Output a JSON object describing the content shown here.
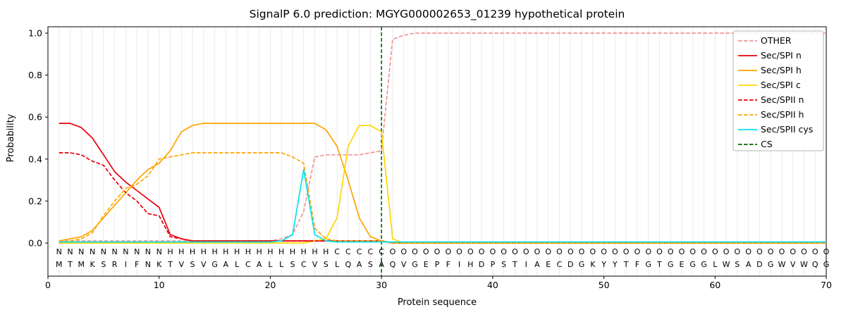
{
  "chart_data": {
    "type": "line",
    "title": "SignalP 6.0 prediction: MGYG000002653_01239 hypothetical protein",
    "xlabel": "Protein sequence",
    "ylabel": "Probability",
    "xlim": [
      0,
      70
    ],
    "ylim": [
      0.0,
      1.05
    ],
    "x_ticks": [
      0,
      10,
      20,
      30,
      40,
      50,
      60,
      70
    ],
    "y_ticks": [
      "0.0",
      "0.2",
      "0.4",
      "0.6",
      "0.8",
      "1.0"
    ],
    "x_start": 1,
    "grid": "vertical-per-residue",
    "legend_position": "upper right",
    "series": [
      {
        "name": "OTHER",
        "color": "#f09494",
        "dash": true,
        "values": [
          0.01,
          0.01,
          0.01,
          0.01,
          0.01,
          0.01,
          0.01,
          0.01,
          0.01,
          0.01,
          0.01,
          0.01,
          0.01,
          0.01,
          0.01,
          0.01,
          0.01,
          0.01,
          0.01,
          0.01,
          0.02,
          0.04,
          0.15,
          0.41,
          0.42,
          0.42,
          0.42,
          0.42,
          0.43,
          0.44,
          0.97,
          0.99,
          1.0,
          1.0,
          1.0,
          1.0,
          1.0,
          1.0,
          1.0,
          1.0,
          1.0,
          1.0,
          1.0,
          1.0,
          1.0,
          1.0,
          1.0,
          1.0,
          1.0,
          1.0,
          1.0,
          1.0,
          1.0,
          1.0,
          1.0,
          1.0,
          1.0,
          1.0,
          1.0,
          1.0,
          1.0,
          1.0,
          1.0,
          1.0,
          1.0,
          1.0,
          1.0,
          1.0,
          1.0,
          1.0
        ]
      },
      {
        "name": "Sec/SPI n",
        "color": "#e8000b",
        "dash": false,
        "values": [
          0.57,
          0.57,
          0.55,
          0.5,
          0.42,
          0.34,
          0.29,
          0.25,
          0.21,
          0.17,
          0.04,
          0.02,
          0.01,
          0.01,
          0.01,
          0.01,
          0.01,
          0.01,
          0.01,
          0.01,
          0.01,
          0.01,
          0.01,
          0.01,
          0.01,
          0.01,
          0.01,
          0.01,
          0.01,
          0.01,
          0,
          0,
          0,
          0,
          0,
          0,
          0,
          0,
          0,
          0,
          0,
          0,
          0,
          0,
          0,
          0,
          0,
          0,
          0,
          0,
          0,
          0,
          0,
          0,
          0,
          0,
          0,
          0,
          0,
          0,
          0,
          0,
          0,
          0,
          0,
          0,
          0,
          0,
          0,
          0
        ]
      },
      {
        "name": "Sec/SPI h",
        "color": "#ffa500",
        "dash": false,
        "values": [
          0.01,
          0.02,
          0.03,
          0.06,
          0.12,
          0.18,
          0.24,
          0.3,
          0.35,
          0.38,
          0.44,
          0.53,
          0.56,
          0.57,
          0.57,
          0.57,
          0.57,
          0.57,
          0.57,
          0.57,
          0.57,
          0.57,
          0.57,
          0.57,
          0.54,
          0.46,
          0.3,
          0.12,
          0.03,
          0.01,
          0,
          0,
          0,
          0,
          0,
          0,
          0,
          0,
          0,
          0,
          0,
          0,
          0,
          0,
          0,
          0,
          0,
          0,
          0,
          0,
          0,
          0,
          0,
          0,
          0,
          0,
          0,
          0,
          0,
          0,
          0,
          0,
          0,
          0,
          0,
          0,
          0,
          0,
          0,
          0
        ]
      },
      {
        "name": "Sec/SPI c",
        "color": "#ffd700",
        "dash": false,
        "values": [
          0,
          0,
          0,
          0,
          0,
          0,
          0,
          0,
          0,
          0,
          0,
          0,
          0,
          0,
          0,
          0,
          0,
          0,
          0,
          0,
          0,
          0,
          0,
          0.01,
          0.02,
          0.12,
          0.46,
          0.56,
          0.56,
          0.53,
          0.02,
          0,
          0,
          0,
          0,
          0,
          0,
          0,
          0,
          0,
          0,
          0,
          0,
          0,
          0,
          0,
          0,
          0,
          0,
          0,
          0,
          0,
          0,
          0,
          0,
          0,
          0,
          0,
          0,
          0,
          0,
          0,
          0,
          0,
          0,
          0,
          0,
          0,
          0,
          0
        ]
      },
      {
        "name": "Sec/SPII n",
        "color": "#e8000b",
        "dash": true,
        "values": [
          0.43,
          0.43,
          0.42,
          0.39,
          0.37,
          0.3,
          0.24,
          0.2,
          0.14,
          0.13,
          0.03,
          0.02,
          0.01,
          0.01,
          0.01,
          0.01,
          0.01,
          0.01,
          0.01,
          0.01,
          0.01,
          0.01,
          0.01,
          0.01,
          0.01,
          0.01,
          0.01,
          0.01,
          0.01,
          0.01,
          0,
          0,
          0,
          0,
          0,
          0,
          0,
          0,
          0,
          0,
          0,
          0,
          0,
          0,
          0,
          0,
          0,
          0,
          0,
          0,
          0,
          0,
          0,
          0,
          0,
          0,
          0,
          0,
          0,
          0,
          0,
          0,
          0,
          0,
          0,
          0,
          0,
          0,
          0,
          0
        ]
      },
      {
        "name": "Sec/SPII h",
        "color": "#ffa500",
        "dash": true,
        "values": [
          0,
          0.01,
          0.02,
          0.05,
          0.13,
          0.2,
          0.26,
          0.28,
          0.32,
          0.4,
          0.41,
          0.42,
          0.43,
          0.43,
          0.43,
          0.43,
          0.43,
          0.43,
          0.43,
          0.43,
          0.43,
          0.41,
          0.38,
          0.07,
          0.02,
          0.01,
          0.01,
          0.01,
          0.01,
          0.01,
          0,
          0,
          0,
          0,
          0,
          0,
          0,
          0,
          0,
          0,
          0,
          0,
          0,
          0,
          0,
          0,
          0,
          0,
          0,
          0,
          0,
          0,
          0,
          0,
          0,
          0,
          0,
          0,
          0,
          0,
          0,
          0,
          0,
          0,
          0,
          0,
          0,
          0,
          0,
          0
        ]
      },
      {
        "name": "Sec/SPII cys",
        "color": "#00e5ee",
        "dash": false,
        "values": [
          0.005,
          0.005,
          0.005,
          0.005,
          0.005,
          0.005,
          0.005,
          0.005,
          0.005,
          0.005,
          0.005,
          0.005,
          0.005,
          0.005,
          0.005,
          0.005,
          0.005,
          0.005,
          0.005,
          0.005,
          0.01,
          0.04,
          0.35,
          0.04,
          0.01,
          0.005,
          0.005,
          0.005,
          0.005,
          0.005,
          0.005,
          0.005,
          0.005,
          0.005,
          0.005,
          0.005,
          0.005,
          0.005,
          0.005,
          0.005,
          0.005,
          0.005,
          0.005,
          0.005,
          0.005,
          0.005,
          0.005,
          0.005,
          0.005,
          0.005,
          0.005,
          0.005,
          0.005,
          0.005,
          0.005,
          0.005,
          0.005,
          0.005,
          0.005,
          0.005,
          0.005,
          0.005,
          0.005,
          0.005,
          0.005,
          0.005,
          0.005,
          0.005,
          0.005,
          0.005
        ]
      }
    ],
    "cs_line": {
      "name": "CS",
      "position": 30,
      "color": "#006400",
      "dash": true
    },
    "sequence": "MTMKSRIFNKTVSVGALCALLSCVSLQASAQVGEPFIHDPSTIAECDGKYYTFGTGEGGLWSADGWVWQG",
    "regions": "NNNNNNNNNNHHHHHHHHHHHHHHHCCCCCOOOOOOOOOOOOOOOOOOOOOOOOOOOOOOOOOOOOOOOO",
    "region_colors": {
      "N": "#e8000b",
      "H": "#ffa500",
      "C": "#ffd700",
      "O": "#8f8f8f"
    },
    "sequence_color": "#111111"
  }
}
